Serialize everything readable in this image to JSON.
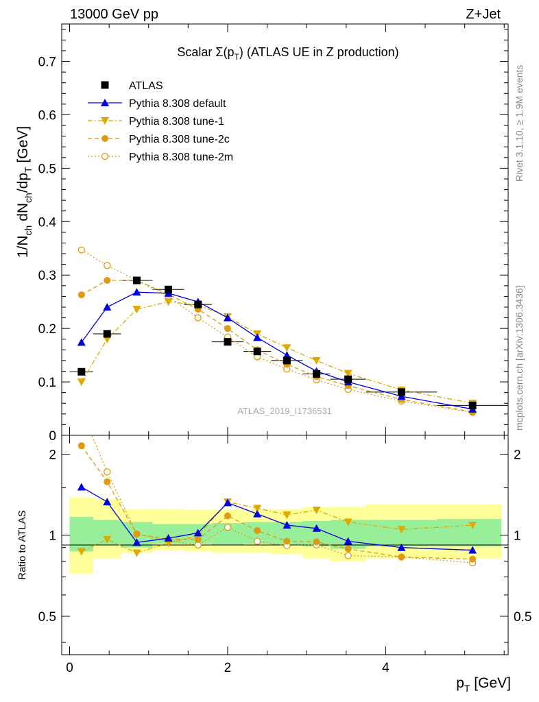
{
  "header": {
    "left": "13000 GeV pp",
    "right": "Z+Jet"
  },
  "side_labels": {
    "rivet": "Rivet 3.1.10, ≥ 1.9M events",
    "mcplots": "mcplots.cern.ch [arXiv:1306.3436]"
  },
  "watermark": "ATLAS_2019_I1736531",
  "chart_data": [
    {
      "type": "line",
      "title": "Scalar Σ(p_T) (ATLAS UE in Z production)",
      "ylabel": "1/N_ch dN_ch/dp_T [GeV]",
      "xlabel": "p_T [GeV]",
      "xlim": [
        -0.1,
        5.55
      ],
      "ylim": [
        0,
        0.77
      ],
      "yticks": [
        0,
        0.1,
        0.2,
        0.3,
        0.4,
        0.5,
        0.6,
        0.7
      ],
      "ytick_labels": [
        "0",
        "0.1",
        "0.2",
        "0.3",
        "0.4",
        "0.5",
        "0.6",
        "0.7"
      ],
      "legend_position": "top-left",
      "data_points": {
        "name": "ATLAS",
        "color": "#000000",
        "x": [
          0.15,
          0.475,
          0.85,
          1.25,
          1.625,
          2.0,
          2.375,
          2.75,
          3.125,
          3.525,
          4.2,
          5.1
        ],
        "y": [
          0.119,
          0.19,
          0.29,
          0.273,
          0.245,
          0.175,
          0.157,
          0.14,
          0.115,
          0.105,
          0.081,
          0.056
        ],
        "xerr": [
          0.15,
          0.175,
          0.2,
          0.2,
          0.175,
          0.2,
          0.175,
          0.2,
          0.175,
          0.225,
          0.45,
          0.45
        ]
      },
      "series": [
        {
          "name": "Pythia 8.308 default",
          "color": "#0000dd",
          "marker": "triangle-up",
          "dash": "",
          "x": [
            0.15,
            0.475,
            0.85,
            1.25,
            1.625,
            2.0,
            2.375,
            2.75,
            3.125,
            3.525,
            4.2,
            5.1
          ],
          "y": [
            0.174,
            0.24,
            0.268,
            0.266,
            0.25,
            0.22,
            0.183,
            0.15,
            0.12,
            0.1,
            0.073,
            0.049
          ]
        },
        {
          "name": "Pythia 8.308 tune-1",
          "color": "#ddaa00",
          "marker": "triangle-down",
          "dash": "7,3,2,3",
          "x": [
            0.15,
            0.475,
            0.85,
            1.25,
            1.625,
            2.0,
            2.375,
            2.75,
            3.125,
            3.525,
            4.2,
            5.1
          ],
          "y": [
            0.1,
            0.18,
            0.236,
            0.25,
            0.244,
            0.222,
            0.19,
            0.164,
            0.14,
            0.116,
            0.085,
            0.06
          ]
        },
        {
          "name": "Pythia 8.308 tune-2c",
          "color": "#e09a10",
          "marker": "circle",
          "dash": "6,4",
          "x": [
            0.15,
            0.475,
            0.85,
            1.25,
            1.625,
            2.0,
            2.375,
            2.75,
            3.125,
            3.525,
            4.2,
            5.1
          ],
          "y": [
            0.263,
            0.29,
            0.29,
            0.264,
            0.236,
            0.2,
            0.16,
            0.133,
            0.11,
            0.093,
            0.067,
            0.044
          ]
        },
        {
          "name": "Pythia 8.308 tune-2m",
          "color": "#e09a10",
          "marker": "circle-open",
          "dash": "2,3",
          "x": [
            0.15,
            0.475,
            0.85,
            1.25,
            1.625,
            2.0,
            2.375,
            2.75,
            3.125,
            3.525,
            4.2,
            5.1
          ],
          "y": [
            0.347,
            0.318,
            0.29,
            0.26,
            0.22,
            0.184,
            0.147,
            0.124,
            0.104,
            0.086,
            0.064,
            0.043
          ]
        }
      ]
    },
    {
      "type": "line",
      "title": "",
      "ylabel": "Ratio to ATLAS",
      "xlabel": "p_T [GeV]",
      "xlim": [
        -0.1,
        5.55
      ],
      "ylim": [
        0.36,
        2.35
      ],
      "yscale": "log",
      "yticks": [
        0.5,
        1,
        2
      ],
      "ytick_labels": [
        "0.5",
        "1",
        "2"
      ],
      "xticks": [
        0,
        2,
        4
      ],
      "xtick_labels": [
        "0",
        "2",
        "4"
      ],
      "reference_line": 1,
      "uncertainty_bands": {
        "x_edges": [
          0.0,
          0.3,
          0.65,
          1.05,
          1.45,
          1.8,
          2.2,
          2.55,
          2.95,
          3.3,
          3.75,
          4.65,
          5.55
        ],
        "inner_lo": [
          0.87,
          0.92,
          0.9,
          0.93,
          0.93,
          0.92,
          0.93,
          0.92,
          0.91,
          0.89,
          0.91,
          0.91
        ],
        "inner_hi": [
          1.17,
          1.14,
          1.12,
          1.1,
          1.1,
          1.11,
          1.12,
          1.12,
          1.13,
          1.14,
          1.14,
          1.15
        ],
        "outer_lo": [
          0.72,
          0.82,
          0.86,
          0.88,
          0.87,
          0.86,
          0.86,
          0.85,
          0.82,
          0.8,
          0.82,
          0.82
        ],
        "outer_hi": [
          1.38,
          1.36,
          1.25,
          1.25,
          1.24,
          1.25,
          1.25,
          1.25,
          1.27,
          1.28,
          1.3,
          1.3
        ],
        "inner_color": "#99ee99",
        "outer_color": "#ffff99"
      },
      "series": [
        {
          "name": "Pythia 8.308 default",
          "color": "#0000dd",
          "marker": "triangle-up",
          "dash": "",
          "x": [
            0.15,
            0.475,
            0.85,
            1.25,
            1.625,
            2.0,
            2.375,
            2.75,
            3.125,
            3.525,
            4.2,
            5.1
          ],
          "y": [
            1.51,
            1.33,
            0.94,
            0.975,
            1.02,
            1.32,
            1.2,
            1.09,
            1.06,
            0.95,
            0.9,
            0.88
          ]
        },
        {
          "name": "Pythia 8.308 tune-1",
          "color": "#ddaa00",
          "marker": "triangle-down",
          "dash": "7,3,2,3",
          "x": [
            0.15,
            0.475,
            0.85,
            1.25,
            1.625,
            2.0,
            2.375,
            2.75,
            3.125,
            3.525,
            4.2,
            5.1
          ],
          "y": [
            0.87,
            0.965,
            0.86,
            0.935,
            0.995,
            1.33,
            1.26,
            1.19,
            1.24,
            1.12,
            1.05,
            1.09
          ]
        },
        {
          "name": "Pythia 8.308 tune-2c",
          "color": "#e09a10",
          "marker": "circle",
          "dash": "6,4",
          "x": [
            0.15,
            0.475,
            0.85,
            1.25,
            1.625,
            2.0,
            2.375,
            2.75,
            3.125,
            3.525,
            4.2,
            5.1
          ],
          "y": [
            2.15,
            1.58,
            1.01,
            0.965,
            0.965,
            1.18,
            1.04,
            0.95,
            0.945,
            0.89,
            0.83,
            0.815
          ]
        },
        {
          "name": "Pythia 8.308 tune-2m",
          "color": "#e09a10",
          "marker": "circle-open",
          "dash": "2,3",
          "x": [
            0.15,
            0.475,
            0.85,
            1.25,
            1.625,
            2.0,
            2.375,
            2.75,
            3.125,
            3.525,
            4.2,
            5.1
          ],
          "y": [
            2.9,
            1.72,
            1.01,
            0.955,
            0.92,
            1.07,
            0.95,
            0.915,
            0.92,
            0.84,
            0.83,
            0.79
          ]
        }
      ]
    }
  ]
}
